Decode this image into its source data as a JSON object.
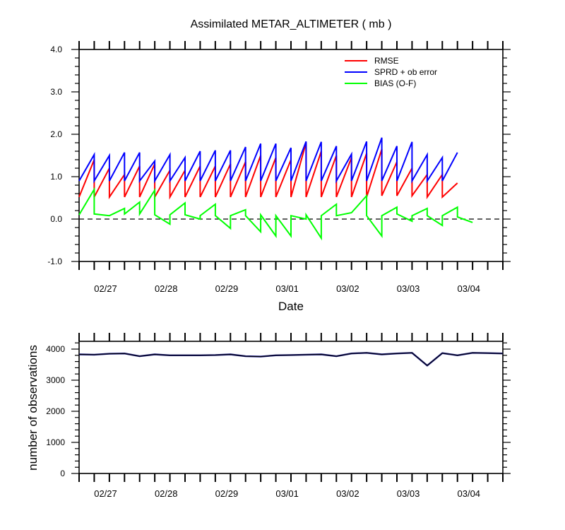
{
  "chart_data": [
    {
      "type": "line",
      "title": "Assimilated METAR_ALTIMETER ( mb )",
      "xlabel": "Date",
      "ylabel": "",
      "ylim": [
        -1.0,
        4.0
      ],
      "yticks": [
        "-1.0",
        "0.0",
        "1.0",
        "2.0",
        "3.0",
        "4.0"
      ],
      "x_tick_labels": [
        "02/27",
        "02/28",
        "02/29",
        "03/01",
        "03/02",
        "03/03",
        "03/04"
      ],
      "zero_line": "dashed",
      "legend_position": "top-right",
      "colors": {
        "RMSE": "#ff0000",
        "SPRD + ob error": "#0000ff",
        "BIAS (O-F)": "#00ff00"
      },
      "series": [
        {
          "name": "RMSE",
          "segments": [
            [
              0.52,
              1.4
            ],
            [
              0.52,
              1.2
            ],
            [
              0.52,
              1.05
            ],
            [
              0.52,
              1.25
            ],
            [
              0.52,
              1.3
            ],
            [
              0.52,
              1.15
            ],
            [
              0.52,
              1.15
            ],
            [
              0.52,
              1.25
            ],
            [
              0.52,
              1.25
            ],
            [
              0.52,
              1.3
            ],
            [
              0.52,
              1.35
            ],
            [
              0.52,
              1.5
            ],
            [
              0.52,
              1.45
            ],
            [
              0.52,
              1.4
            ],
            [
              0.52,
              1.8
            ],
            [
              0.52,
              1.6
            ],
            [
              0.52,
              1.5
            ],
            [
              0.52,
              1.45
            ],
            [
              0.52,
              1.55
            ],
            [
              0.52,
              1.65
            ],
            [
              0.55,
              1.35
            ],
            [
              0.55,
              1.2
            ],
            [
              0.55,
              1.05
            ],
            [
              0.52,
              1.05
            ],
            [
              0.52,
              0.85
            ]
          ]
        },
        {
          "name": "SPRD + ob error",
          "segments": [
            [
              0.9,
              1.52
            ],
            [
              0.9,
              1.5
            ],
            [
              0.9,
              1.57
            ],
            [
              0.9,
              1.57
            ],
            [
              0.9,
              1.37
            ],
            [
              0.9,
              1.52
            ],
            [
              0.9,
              1.45
            ],
            [
              0.9,
              1.6
            ],
            [
              0.9,
              1.62
            ],
            [
              0.9,
              1.62
            ],
            [
              0.9,
              1.7
            ],
            [
              0.9,
              1.78
            ],
            [
              0.9,
              1.78
            ],
            [
              0.9,
              1.68
            ],
            [
              0.9,
              1.83
            ],
            [
              0.9,
              1.82
            ],
            [
              0.9,
              1.72
            ],
            [
              0.9,
              1.53
            ],
            [
              0.9,
              1.83
            ],
            [
              0.9,
              1.92
            ],
            [
              0.9,
              1.72
            ],
            [
              0.9,
              1.82
            ],
            [
              0.9,
              1.52
            ],
            [
              0.9,
              1.45
            ],
            [
              0.9,
              1.57
            ]
          ]
        },
        {
          "name": "BIAS (O-F)",
          "segments": [
            [
              0.1,
              0.7
            ],
            [
              0.12,
              0.08
            ],
            [
              0.08,
              0.25
            ],
            [
              0.12,
              0.4
            ],
            [
              0.12,
              0.68
            ],
            [
              0.1,
              -0.12
            ],
            [
              0.1,
              0.38
            ],
            [
              0.1,
              0.0
            ],
            [
              0.08,
              0.35
            ],
            [
              0.08,
              -0.22
            ],
            [
              0.08,
              0.22
            ],
            [
              0.08,
              -0.3
            ],
            [
              0.1,
              -0.4
            ],
            [
              0.08,
              -0.4
            ],
            [
              0.08,
              0.0
            ],
            [
              0.1,
              -0.45
            ],
            [
              0.08,
              0.35
            ],
            [
              0.08,
              0.15
            ],
            [
              0.15,
              0.55
            ],
            [
              0.08,
              -0.4
            ],
            [
              0.08,
              0.28
            ],
            [
              0.12,
              -0.05
            ],
            [
              0.08,
              0.25
            ],
            [
              0.08,
              -0.15
            ],
            [
              0.08,
              0.28
            ],
            [
              0.05,
              -0.08
            ]
          ]
        }
      ]
    },
    {
      "type": "line",
      "title": "",
      "xlabel": "",
      "ylabel": "number of observations",
      "ylim": [
        0,
        4250
      ],
      "yticks": [
        "0",
        "1000",
        "2000",
        "3000",
        "4000"
      ],
      "x_tick_labels": [
        "02/27",
        "02/28",
        "02/29",
        "03/01",
        "03/02",
        "03/03",
        "03/04"
      ],
      "series": [
        {
          "name": "",
          "values": [
            3830,
            3820,
            3850,
            3860,
            3770,
            3830,
            3800,
            3800,
            3800,
            3810,
            3830,
            3770,
            3760,
            3800,
            3810,
            3820,
            3830,
            3770,
            3860,
            3880,
            3830,
            3860,
            3880,
            3470,
            3870,
            3800,
            3880,
            3870,
            3860
          ]
        }
      ]
    }
  ]
}
